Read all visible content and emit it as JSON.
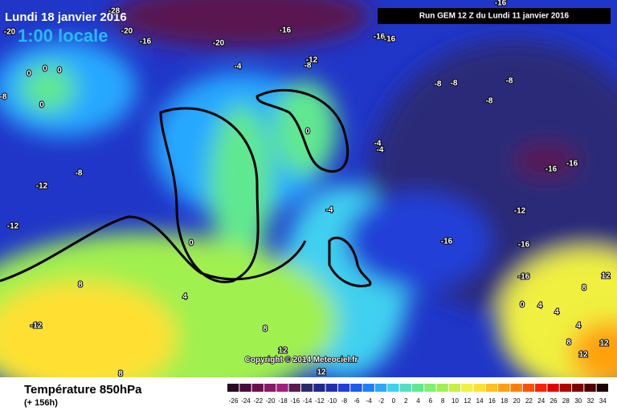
{
  "header": {
    "title": "Lundi 18 janvier 2016",
    "time": "1:00 locale",
    "run": "Run GEM 12 Z du Lundi 11 janvier 2016"
  },
  "map": {
    "copyright": "Copyright © 2014 Meteociel.fr",
    "contour_labels": [
      "-28",
      "-20",
      "-20",
      "-16",
      "-20",
      "-16",
      "-16",
      "-16",
      "-16",
      "0",
      "0",
      "0",
      "-8",
      "0",
      "-4",
      "-12",
      "-8",
      "-8",
      "-8",
      "-8",
      "-8",
      "0",
      "-4",
      "-4",
      "-8",
      "-12",
      "-12",
      "-16",
      "-16",
      "-4",
      "-12",
      "-16",
      "-16",
      "-16",
      "0",
      "8",
      "4",
      "8",
      "12",
      "0",
      "4",
      "4",
      "-12",
      "8",
      "4",
      "12",
      "8",
      "12",
      "12",
      "12",
      "8"
    ]
  },
  "footer": {
    "title": "Température 850hPa",
    "lead": "(+ 156h)"
  },
  "legend": {
    "ticks": [
      -26,
      -24,
      -22,
      -20,
      -18,
      -16,
      -14,
      -12,
      -10,
      -8,
      -6,
      -4,
      -2,
      0,
      2,
      4,
      6,
      8,
      10,
      12,
      14,
      16,
      18,
      20,
      22,
      24,
      26,
      28,
      30,
      32,
      34
    ],
    "colors": [
      "#2a0a20",
      "#4a0d38",
      "#6a1050",
      "#8a1868",
      "#a02080",
      "#5a1850",
      "#2a2a6a",
      "#1e2a8a",
      "#2030b0",
      "#2040d8",
      "#1c5af0",
      "#1e80ff",
      "#28a8ff",
      "#40d0f0",
      "#50e0c0",
      "#60e890",
      "#80f070",
      "#a0f050",
      "#c8f040",
      "#f0f040",
      "#ffe030",
      "#ffc020",
      "#ffa010",
      "#ff8000",
      "#ff5000",
      "#ff2000",
      "#e00000",
      "#b00000",
      "#800000",
      "#500000",
      "#200000"
    ]
  }
}
